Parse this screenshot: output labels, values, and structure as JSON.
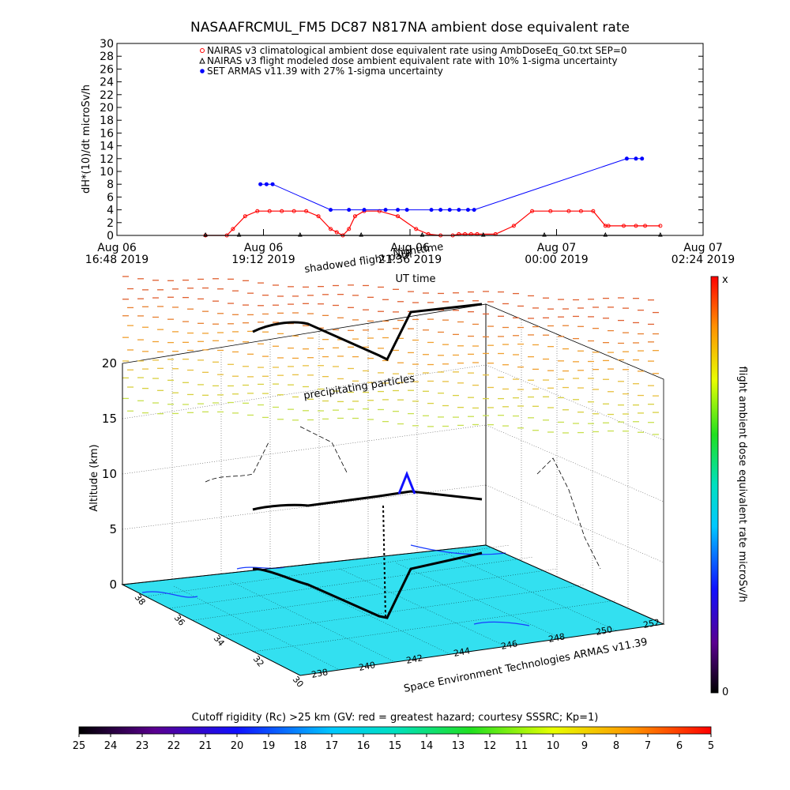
{
  "chart_data": [
    {
      "type": "line",
      "title": "NASAAFRCMUL_FM5 DC87 N817NA ambient dose equivalent rate",
      "ylabel": "dH*(10)/dt microSv/h",
      "xlabel": "UT time",
      "ylim": [
        0,
        30
      ],
      "yticks": [
        "0",
        "2",
        "4",
        "6",
        "8",
        "10",
        "12",
        "14",
        "16",
        "18",
        "20",
        "22",
        "24",
        "26",
        "28",
        "30"
      ],
      "xticks": [
        {
          "line1": "Aug 06",
          "line2": "16:48 2019"
        },
        {
          "line1": "Aug 06",
          "line2": "19:12 2019"
        },
        {
          "line1": "Aug 06",
          "line2": "21:36 2019"
        },
        {
          "line1": "Aug 07",
          "line2": "00:00 2019"
        },
        {
          "line1": "Aug 07",
          "line2": "02:24 2019"
        }
      ],
      "x_units": "hours since Aug 06 16:48 2019",
      "xlim": [
        0,
        9.6
      ],
      "legend": [
        "NAIRAS v3 climatological ambient dose equivalent rate using AmbDoseEq_G0.txt SEP=0",
        "NAIRAS v3 flight modeled dose ambient equivalent rate with 10% 1-sigma uncertainty",
        "SET ARMAS v11.39 with 27% 1-sigma uncertainty"
      ],
      "legend_placement": "top",
      "series": [
        {
          "name": "NAIRAS v3 climatological ambient dose equivalent rate using AmbDoseEq_G0.txt SEP=0",
          "color": "#ff0000",
          "marker": "diamond",
          "x": [
            1.45,
            1.8,
            1.9,
            2.1,
            2.3,
            2.5,
            2.7,
            2.9,
            3.1,
            3.3,
            3.5,
            3.6,
            3.7,
            3.8,
            3.9,
            4.05,
            4.3,
            4.6,
            4.9,
            5.1,
            5.3,
            5.5,
            5.6,
            5.7,
            5.8,
            5.9,
            6.2,
            6.5,
            6.8,
            7.1,
            7.4,
            7.6,
            7.8,
            8.0,
            8.05,
            8.3,
            8.5,
            8.65,
            8.9
          ],
          "y": [
            0,
            0,
            1,
            3,
            3.8,
            3.8,
            3.8,
            3.8,
            3.8,
            3,
            1,
            0.5,
            0,
            1,
            3,
            3.8,
            3.8,
            3,
            1,
            0.2,
            0,
            0,
            0.2,
            0.2,
            0.2,
            0.2,
            0.2,
            1.5,
            3.8,
            3.8,
            3.8,
            3.8,
            3.8,
            1.5,
            1.5,
            1.5,
            1.5,
            1.5,
            1.5
          ]
        },
        {
          "name": "NAIRAS v3 flight modeled dose ambient equivalent rate with 10% 1-sigma uncertainty",
          "color": "#000000",
          "marker": "triangle",
          "x": [
            1.45,
            2.0,
            3.0,
            4.0,
            5.0,
            6.0,
            7.0,
            8.0,
            8.9
          ],
          "y": [
            0,
            0,
            0,
            0,
            0,
            0,
            0,
            0,
            0
          ]
        },
        {
          "name": "SET ARMAS v11.39 with 27% 1-sigma uncertainty",
          "color": "#0000ff",
          "marker": "dot",
          "x": [
            2.35,
            2.45,
            2.55,
            3.5,
            3.8,
            4.05,
            4.4,
            4.6,
            4.75,
            5.15,
            5.3,
            5.45,
            5.6,
            5.75,
            5.85,
            8.35,
            8.5,
            8.6
          ],
          "y": [
            8,
            8,
            8,
            4,
            4,
            4,
            4,
            4,
            4,
            4,
            4,
            4,
            4,
            4,
            4,
            12,
            12,
            12
          ]
        }
      ]
    },
    {
      "type": "scatter",
      "title": "",
      "zlabel": "Altitude (km)",
      "zlim": [
        0,
        20
      ],
      "zticks": [
        "0",
        "5",
        "10",
        "15",
        "20"
      ],
      "lon_ticks": [
        "238",
        "240",
        "242",
        "244",
        "246",
        "248",
        "250",
        "252"
      ],
      "lat_ticks": [
        "30",
        "32",
        "34",
        "36",
        "38"
      ],
      "annotations": [
        "precipitating particles",
        "shadowed flight path",
        "Nighttime"
      ],
      "credit": "Space Environment Technologies ARMAS v11.39",
      "colorbar_right": {
        "label": "flight ambient dose equivalent rate microSv/h",
        "top": "x",
        "bottom": "0"
      },
      "colorbar_bottom": {
        "label": "Cutoff rigidity (Rc) >25 km (GV: red = greatest hazard; courtesy SSSRC; Kp=1)",
        "ticks": [
          "25",
          "24",
          "23",
          "22",
          "21",
          "20",
          "19",
          "18",
          "17",
          "16",
          "15",
          "14",
          "13",
          "12",
          "11",
          "10",
          "9",
          "8",
          "7",
          "6",
          "5"
        ]
      }
    }
  ],
  "colors": {
    "nairas_clim": "#ff0000",
    "nairas_flight": "#000000",
    "armas": "#0000ff",
    "floor": "#33e0f0"
  }
}
